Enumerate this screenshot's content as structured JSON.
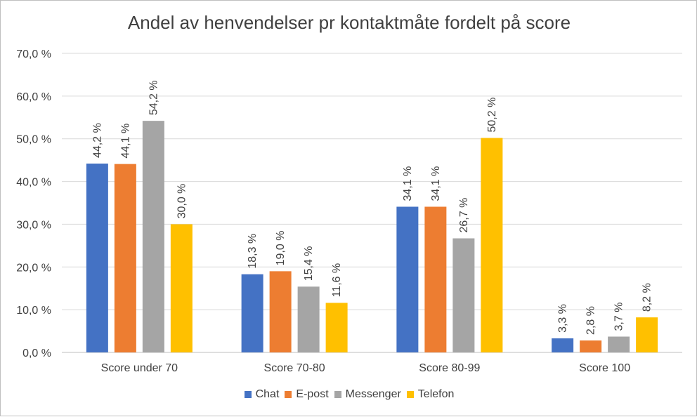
{
  "chart_data": {
    "type": "bar",
    "title": "Andel av henvendelser pr kontaktmåte fordelt på score",
    "xlabel": "",
    "ylabel": "",
    "ylim": [
      0,
      70
    ],
    "yticks": [
      0,
      10,
      20,
      30,
      40,
      50,
      60,
      70
    ],
    "ytick_labels": [
      "0,0 %",
      "10,0 %",
      "20,0 %",
      "30,0 %",
      "40,0 %",
      "50,0 %",
      "60,0 %",
      "70,0 %"
    ],
    "grid": true,
    "legend_position": "bottom",
    "categories": [
      "Score under 70",
      "Score 70-80",
      "Score 80-99",
      "Score 100"
    ],
    "series": [
      {
        "name": "Chat",
        "color": "#4472C4",
        "values": [
          44.2,
          18.3,
          34.1,
          3.3
        ],
        "labels": [
          "44,2 %",
          "18,3 %",
          "34,1 %",
          "3,3 %"
        ]
      },
      {
        "name": "E-post",
        "color": "#ED7D31",
        "values": [
          44.1,
          19.0,
          34.1,
          2.8
        ],
        "labels": [
          "44,1 %",
          "19,0 %",
          "34,1 %",
          "2,8 %"
        ]
      },
      {
        "name": "Messenger",
        "color": "#A5A5A5",
        "values": [
          54.2,
          15.4,
          26.7,
          3.7
        ],
        "labels": [
          "54,2 %",
          "15,4 %",
          "26,7 %",
          "3,7 %"
        ]
      },
      {
        "name": "Telefon",
        "color": "#FFC000",
        "values": [
          30.0,
          11.6,
          50.2,
          8.2
        ],
        "labels": [
          "30,0 %",
          "11,6 %",
          "50,2 %",
          "8,2 %"
        ]
      }
    ]
  }
}
